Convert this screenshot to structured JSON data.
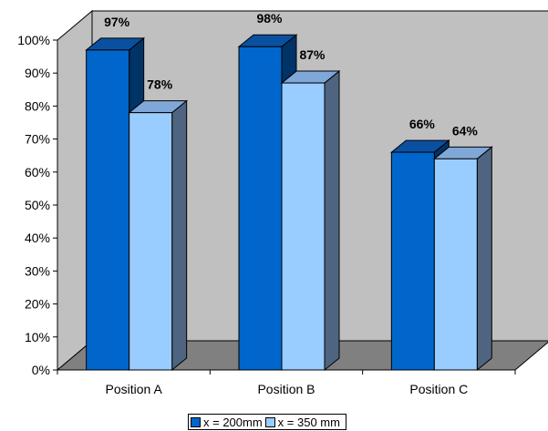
{
  "chart_data": {
    "type": "bar",
    "categories": [
      "Position A",
      "Position B",
      "Position C"
    ],
    "series": [
      {
        "name": "x = 200mm",
        "values": [
          97,
          98,
          66
        ],
        "labels": [
          "97%",
          "98%",
          "66%"
        ],
        "color": "#0066CC"
      },
      {
        "name": "x = 350 mm",
        "values": [
          78,
          87,
          64
        ],
        "labels": [
          "78%",
          "87%",
          "64%"
        ],
        "color": "#99CCFF"
      }
    ],
    "title": "",
    "xlabel": "",
    "ylabel": "",
    "ylim": [
      0,
      100
    ],
    "y_ticks": [
      "0%",
      "10%",
      "20%",
      "30%",
      "40%",
      "50%",
      "60%",
      "70%",
      "80%",
      "90%",
      "100%"
    ],
    "style": "3d-clustered-column",
    "legend_position": "bottom",
    "wall_color": "#C0C0C0",
    "floor_color": "#808080"
  }
}
